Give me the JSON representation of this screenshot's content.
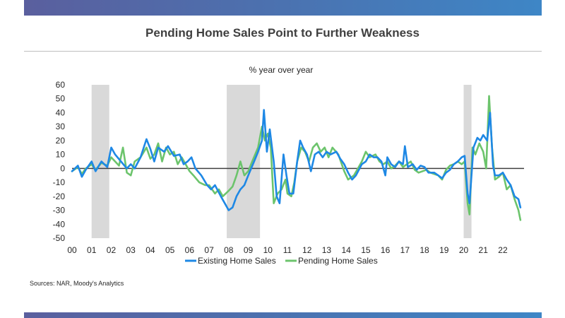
{
  "page": {
    "title": "Pending Home Sales Point to Further Weakness",
    "source": "Sources: NAR, Moody's Analytics"
  },
  "colors": {
    "existing": "#1e88e5",
    "pending": "#6cc46c",
    "recession": "#d9d9d9",
    "zero_line": "#404040",
    "band": "#4b72b0"
  },
  "chart_data": {
    "type": "line",
    "ylabel": "% year over year",
    "xlim": [
      2000.0,
      2023.3
    ],
    "ylim": [
      -50,
      60
    ],
    "yticks": [
      60,
      50,
      40,
      30,
      20,
      10,
      0,
      -10,
      -20,
      -30,
      -40,
      -50
    ],
    "xtick_labels": [
      "00",
      "01",
      "02",
      "03",
      "04",
      "05",
      "06",
      "07",
      "08",
      "09",
      "10",
      "11",
      "12",
      "13",
      "14",
      "15",
      "16",
      "17",
      "18",
      "19",
      "20",
      "21",
      "22"
    ],
    "recessions": [
      [
        2001.0,
        2001.9
      ],
      [
        2007.9,
        2009.6
      ],
      [
        2020.0,
        2020.4
      ]
    ],
    "legend": "bottom-center",
    "series": [
      {
        "name": "Existing Home Sales",
        "points": [
          [
            2000.0,
            -2
          ],
          [
            2000.3,
            2
          ],
          [
            2000.5,
            -6
          ],
          [
            2000.7,
            -1
          ],
          [
            2000.9,
            3
          ],
          [
            2001.0,
            5
          ],
          [
            2001.2,
            -2
          ],
          [
            2001.5,
            5
          ],
          [
            2001.8,
            1
          ],
          [
            2002.0,
            15
          ],
          [
            2002.2,
            10
          ],
          [
            2002.5,
            5
          ],
          [
            2002.8,
            0
          ],
          [
            2003.0,
            3
          ],
          [
            2003.2,
            0
          ],
          [
            2003.5,
            8
          ],
          [
            2003.8,
            21
          ],
          [
            2004.0,
            14
          ],
          [
            2004.2,
            5
          ],
          [
            2004.4,
            15
          ],
          [
            2004.7,
            12
          ],
          [
            2004.9,
            16
          ],
          [
            2005.2,
            9
          ],
          [
            2005.5,
            10
          ],
          [
            2005.7,
            3
          ],
          [
            2005.9,
            5
          ],
          [
            2006.1,
            8
          ],
          [
            2006.3,
            0
          ],
          [
            2006.6,
            -5
          ],
          [
            2006.9,
            -12
          ],
          [
            2007.1,
            -15
          ],
          [
            2007.3,
            -12
          ],
          [
            2007.6,
            -20
          ],
          [
            2007.8,
            -25
          ],
          [
            2008.0,
            -30
          ],
          [
            2008.2,
            -28
          ],
          [
            2008.4,
            -20
          ],
          [
            2008.6,
            -15
          ],
          [
            2008.8,
            -12
          ],
          [
            2009.0,
            -5
          ],
          [
            2009.3,
            5
          ],
          [
            2009.5,
            12
          ],
          [
            2009.7,
            20
          ],
          [
            2009.8,
            42
          ],
          [
            2009.95,
            12
          ],
          [
            2010.1,
            28
          ],
          [
            2010.3,
            5
          ],
          [
            2010.45,
            -20
          ],
          [
            2010.6,
            -25
          ],
          [
            2010.8,
            10
          ],
          [
            2010.95,
            -5
          ],
          [
            2011.1,
            -18
          ],
          [
            2011.3,
            -18
          ],
          [
            2011.5,
            5
          ],
          [
            2011.65,
            20
          ],
          [
            2011.8,
            15
          ],
          [
            2012.0,
            10
          ],
          [
            2012.2,
            -2
          ],
          [
            2012.4,
            10
          ],
          [
            2012.6,
            12
          ],
          [
            2012.8,
            8
          ],
          [
            2013.0,
            12
          ],
          [
            2013.2,
            10
          ],
          [
            2013.5,
            12
          ],
          [
            2013.7,
            7
          ],
          [
            2013.9,
            3
          ],
          [
            2014.1,
            -3
          ],
          [
            2014.3,
            -8
          ],
          [
            2014.5,
            -5
          ],
          [
            2014.8,
            3
          ],
          [
            2015.0,
            5
          ],
          [
            2015.2,
            10
          ],
          [
            2015.4,
            8
          ],
          [
            2015.6,
            8
          ],
          [
            2015.8,
            5
          ],
          [
            2016.0,
            -5
          ],
          [
            2016.1,
            8
          ],
          [
            2016.3,
            3
          ],
          [
            2016.5,
            1
          ],
          [
            2016.7,
            5
          ],
          [
            2016.9,
            3
          ],
          [
            2017.0,
            16
          ],
          [
            2017.15,
            1
          ],
          [
            2017.4,
            3
          ],
          [
            2017.6,
            -1
          ],
          [
            2017.8,
            2
          ],
          [
            2018.0,
            1
          ],
          [
            2018.2,
            -3
          ],
          [
            2018.5,
            -3
          ],
          [
            2018.7,
            -5
          ],
          [
            2018.9,
            -7
          ],
          [
            2019.1,
            -3
          ],
          [
            2019.3,
            -1
          ],
          [
            2019.5,
            3
          ],
          [
            2019.7,
            5
          ],
          [
            2019.9,
            8
          ],
          [
            2020.05,
            9
          ],
          [
            2020.2,
            -18
          ],
          [
            2020.3,
            -25
          ],
          [
            2020.5,
            15
          ],
          [
            2020.7,
            22
          ],
          [
            2020.85,
            20
          ],
          [
            2021.0,
            24
          ],
          [
            2021.2,
            20
          ],
          [
            2021.35,
            40
          ],
          [
            2021.5,
            2
          ],
          [
            2021.6,
            -5
          ],
          [
            2021.8,
            -5
          ],
          [
            2022.0,
            -3
          ],
          [
            2022.2,
            -8
          ],
          [
            2022.4,
            -12
          ],
          [
            2022.6,
            -20
          ],
          [
            2022.8,
            -22
          ],
          [
            2022.9,
            -28
          ]
        ]
      },
      {
        "name": "Pending Home Sales",
        "points": [
          [
            2000.0,
            -2
          ],
          [
            2000.3,
            1
          ],
          [
            2000.5,
            -4
          ],
          [
            2000.7,
            0
          ],
          [
            2000.9,
            2
          ],
          [
            2001.0,
            3
          ],
          [
            2001.2,
            -1
          ],
          [
            2001.5,
            4
          ],
          [
            2001.8,
            2
          ],
          [
            2002.0,
            8
          ],
          [
            2002.2,
            5
          ],
          [
            2002.4,
            2
          ],
          [
            2002.6,
            15
          ],
          [
            2002.8,
            -3
          ],
          [
            2003.0,
            -5
          ],
          [
            2003.2,
            5
          ],
          [
            2003.5,
            8
          ],
          [
            2003.8,
            15
          ],
          [
            2004.0,
            7
          ],
          [
            2004.2,
            10
          ],
          [
            2004.4,
            18
          ],
          [
            2004.6,
            5
          ],
          [
            2004.8,
            15
          ],
          [
            2005.0,
            10
          ],
          [
            2005.2,
            12
          ],
          [
            2005.4,
            3
          ],
          [
            2005.6,
            8
          ],
          [
            2005.8,
            3
          ],
          [
            2006.0,
            -2
          ],
          [
            2006.2,
            -5
          ],
          [
            2006.5,
            -10
          ],
          [
            2006.8,
            -12
          ],
          [
            2007.0,
            -12
          ],
          [
            2007.3,
            -18
          ],
          [
            2007.5,
            -15
          ],
          [
            2007.7,
            -20
          ],
          [
            2008.0,
            -16
          ],
          [
            2008.2,
            -13
          ],
          [
            2008.4,
            -5
          ],
          [
            2008.6,
            5
          ],
          [
            2008.8,
            -5
          ],
          [
            2009.0,
            -2
          ],
          [
            2009.2,
            5
          ],
          [
            2009.5,
            15
          ],
          [
            2009.7,
            30
          ],
          [
            2009.85,
            20
          ],
          [
            2010.0,
            25
          ],
          [
            2010.15,
            15
          ],
          [
            2010.3,
            -25
          ],
          [
            2010.5,
            -18
          ],
          [
            2010.7,
            -15
          ],
          [
            2010.9,
            -8
          ],
          [
            2011.0,
            -18
          ],
          [
            2011.2,
            -20
          ],
          [
            2011.35,
            -10
          ],
          [
            2011.5,
            5
          ],
          [
            2011.7,
            15
          ],
          [
            2011.9,
            12
          ],
          [
            2012.1,
            5
          ],
          [
            2012.3,
            15
          ],
          [
            2012.5,
            18
          ],
          [
            2012.7,
            12
          ],
          [
            2012.9,
            15
          ],
          [
            2013.1,
            8
          ],
          [
            2013.3,
            15
          ],
          [
            2013.6,
            10
          ],
          [
            2013.9,
            -2
          ],
          [
            2014.1,
            -8
          ],
          [
            2014.4,
            -5
          ],
          [
            2014.6,
            0
          ],
          [
            2014.8,
            5
          ],
          [
            2015.0,
            12
          ],
          [
            2015.2,
            8
          ],
          [
            2015.5,
            10
          ],
          [
            2015.7,
            5
          ],
          [
            2015.9,
            3
          ],
          [
            2016.1,
            5
          ],
          [
            2016.3,
            0
          ],
          [
            2016.5,
            2
          ],
          [
            2016.7,
            5
          ],
          [
            2016.9,
            1
          ],
          [
            2017.1,
            3
          ],
          [
            2017.3,
            5
          ],
          [
            2017.5,
            -1
          ],
          [
            2017.7,
            -3
          ],
          [
            2017.9,
            -2
          ],
          [
            2018.1,
            -1
          ],
          [
            2018.3,
            -3
          ],
          [
            2018.5,
            -4
          ],
          [
            2018.7,
            -5
          ],
          [
            2018.9,
            -8
          ],
          [
            2019.1,
            -1
          ],
          [
            2019.3,
            2
          ],
          [
            2019.5,
            3
          ],
          [
            2019.7,
            5
          ],
          [
            2019.9,
            3
          ],
          [
            2020.05,
            5
          ],
          [
            2020.2,
            -25
          ],
          [
            2020.3,
            -33
          ],
          [
            2020.45,
            15
          ],
          [
            2020.6,
            10
          ],
          [
            2020.8,
            18
          ],
          [
            2021.0,
            12
          ],
          [
            2021.15,
            0
          ],
          [
            2021.3,
            52
          ],
          [
            2021.45,
            15
          ],
          [
            2021.6,
            -8
          ],
          [
            2021.8,
            -6
          ],
          [
            2022.0,
            -3
          ],
          [
            2022.2,
            -15
          ],
          [
            2022.4,
            -12
          ],
          [
            2022.6,
            -22
          ],
          [
            2022.8,
            -30
          ],
          [
            2022.9,
            -37
          ]
        ]
      }
    ]
  }
}
